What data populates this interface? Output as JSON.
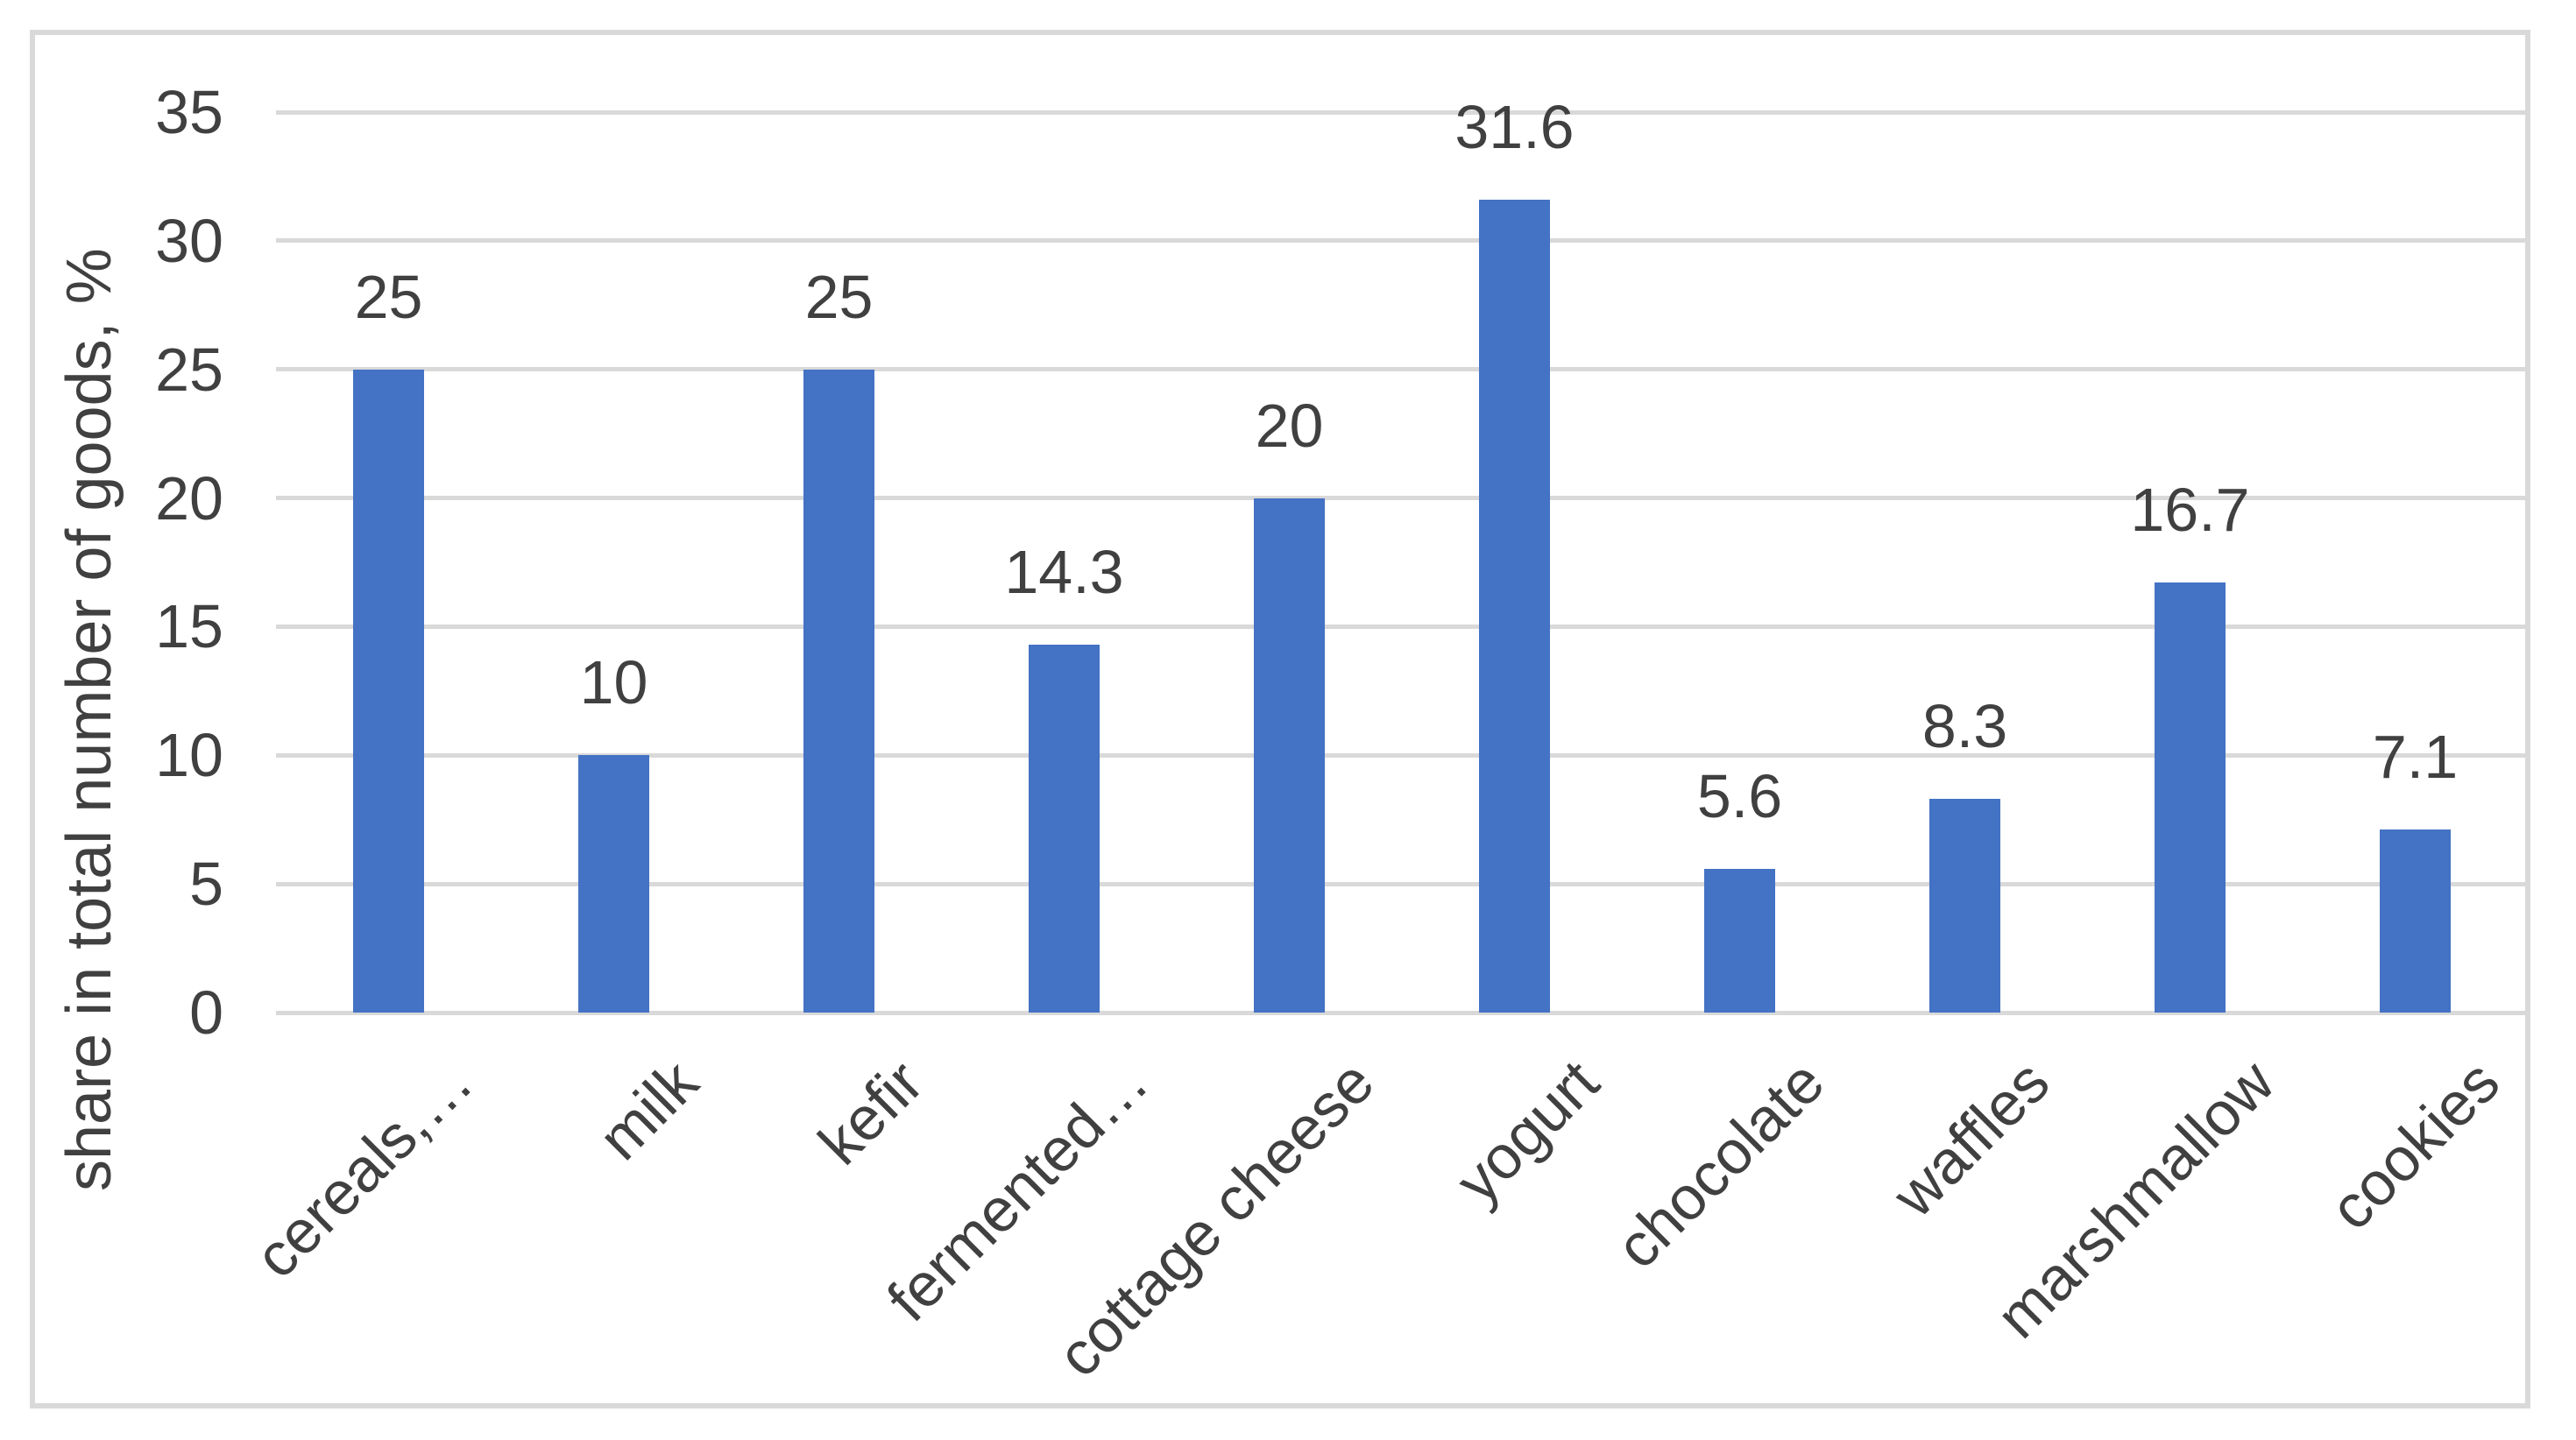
{
  "chart_data": {
    "type": "bar",
    "categories": [
      "cereals,…",
      "milk",
      "kefir",
      "fermented…",
      "cottage cheese",
      "yogurt",
      "chocolate",
      "waffles",
      "marshmallow",
      "cookies"
    ],
    "values": [
      25,
      10,
      25,
      14.3,
      20,
      31.6,
      5.6,
      8.3,
      16.7,
      7.1
    ],
    "data_labels": [
      "25",
      "10",
      "25",
      "14.3",
      "20",
      "31.6",
      "5.6",
      "8.3",
      "16.7",
      "7.1"
    ],
    "title": "",
    "xlabel": "",
    "ylabel": "share in total number of goods, %",
    "ylim": [
      0,
      35
    ],
    "ytick_step": 5,
    "yticks": [
      "0",
      "5",
      "10",
      "15",
      "20",
      "25",
      "30",
      "35"
    ],
    "grid": true,
    "legend_position": "none",
    "colors": {
      "bar": "#4472C4",
      "gridline": "#D9D9D9",
      "border": "#D9D9D9",
      "text": "#404040"
    }
  }
}
